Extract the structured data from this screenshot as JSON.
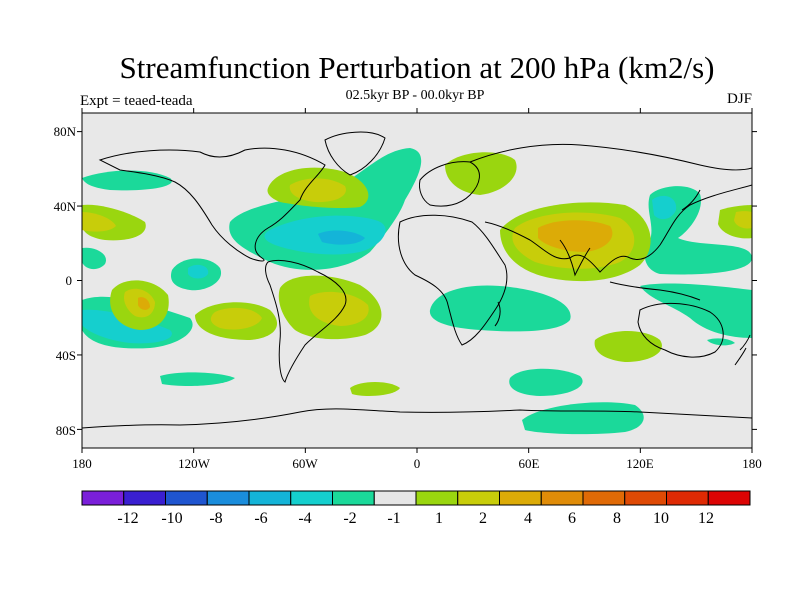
{
  "title": "Streamfunction Perturbation at 200 hPa (km2/s)",
  "subtitle": "02.5kyr BP - 00.0kyr BP",
  "left_label": "Expt = teaed-teada",
  "right_label": "DJF",
  "map": {
    "projection": "cylindrical-equidistant",
    "lon_range": [
      -180,
      180
    ],
    "lat_range": [
      -90,
      90
    ],
    "background_color": "#e8e8e8",
    "x_ticks": [
      "180",
      "120W",
      "60W",
      "0",
      "60E",
      "120E",
      "180"
    ],
    "y_ticks": [
      "80N",
      "40N",
      "0",
      "40S",
      "80S"
    ]
  },
  "colorbar": {
    "colors": [
      "#7a1fd9",
      "#3a1fd1",
      "#1f55d0",
      "#1a8ddc",
      "#14b4d8",
      "#15cfce",
      "#1bd99a",
      "#e6e6e6",
      "#9ad60f",
      "#c8cd0a",
      "#dcab07",
      "#e08c08",
      "#e06a06",
      "#df4a05",
      "#df2a04",
      "#dc0404"
    ],
    "labels": [
      "-12",
      "-10",
      "-8",
      "-6",
      "-4",
      "-2",
      "-1",
      "1",
      "2",
      "4",
      "6",
      "8",
      "10",
      "12"
    ]
  }
}
